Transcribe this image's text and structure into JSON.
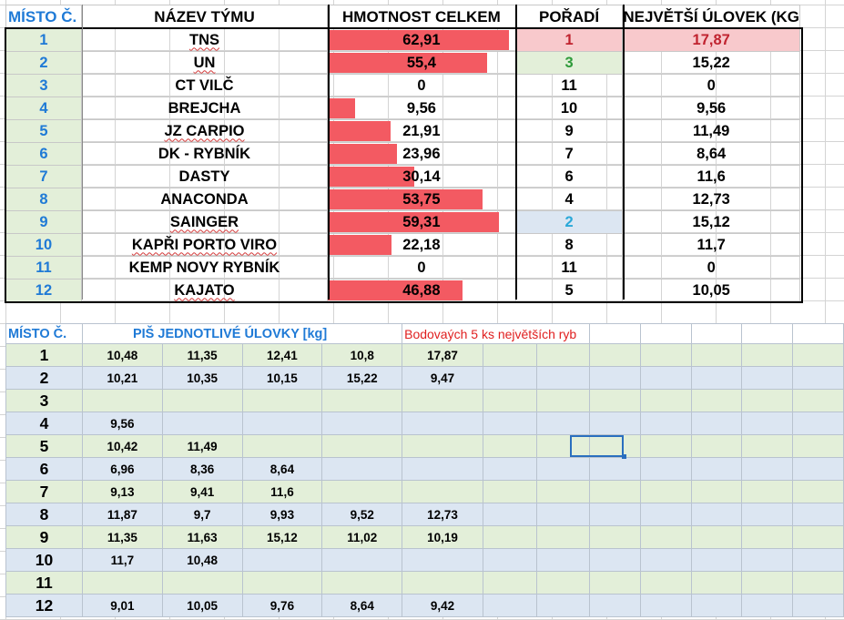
{
  "top_table": {
    "headers": {
      "misto": "MÍSTO Č.",
      "nazev": "NÁZEV TÝMU",
      "hmotnost": "HMOTNOST CELKEM",
      "poradi": "POŘADÍ",
      "ulovek": "NEJVĚTŠÍ ÚLOVEK (KG"
    },
    "bar_max": 65,
    "rows": [
      {
        "misto": "1",
        "nazev": "TNS",
        "hmotnost": "62,91",
        "hmotnost_value": 62.91,
        "poradi": "1",
        "ulovek": "17,87"
      },
      {
        "misto": "2",
        "nazev": "UN",
        "hmotnost": "55,4",
        "hmotnost_value": 55.4,
        "poradi": "3",
        "ulovek": "15,22"
      },
      {
        "misto": "3",
        "nazev": "CT VILČ",
        "hmotnost": "0",
        "hmotnost_value": 0,
        "poradi": "11",
        "ulovek": "0"
      },
      {
        "misto": "4",
        "nazev": "BREJCHA",
        "hmotnost": "9,56",
        "hmotnost_value": 9.56,
        "poradi": "10",
        "ulovek": "9,56"
      },
      {
        "misto": "5",
        "nazev": "JZ CARPIO",
        "hmotnost": "21,91",
        "hmotnost_value": 21.91,
        "poradi": "9",
        "ulovek": "11,49"
      },
      {
        "misto": "6",
        "nazev": "DK - RYBNÍK",
        "hmotnost": "23,96",
        "hmotnost_value": 23.96,
        "poradi": "7",
        "ulovek": "8,64"
      },
      {
        "misto": "7",
        "nazev": "DASTY",
        "hmotnost": "30,14",
        "hmotnost_value": 30.14,
        "poradi": "6",
        "ulovek": "11,6"
      },
      {
        "misto": "8",
        "nazev": "ANACONDA",
        "hmotnost": "53,75",
        "hmotnost_value": 53.75,
        "poradi": "4",
        "ulovek": "12,73"
      },
      {
        "misto": "9",
        "nazev": "SAINGER",
        "hmotnost": "59,31",
        "hmotnost_value": 59.31,
        "poradi": "2",
        "ulovek": "15,12"
      },
      {
        "misto": "10",
        "nazev": "KAPŘI PORTO VIRO",
        "hmotnost": "22,18",
        "hmotnost_value": 22.18,
        "poradi": "8",
        "ulovek": "11,7"
      },
      {
        "misto": "11",
        "nazev": "KEMP NOVY RYBNÍK",
        "hmotnost": "0",
        "hmotnost_value": 0,
        "poradi": "11",
        "ulovek": "0"
      },
      {
        "misto": "12",
        "nazev": "KAJATO",
        "hmotnost": "46,88",
        "hmotnost_value": 46.88,
        "poradi": "5",
        "ulovek": "10,05"
      }
    ],
    "highlight_colors": {
      "rank1_bg": "#f8c9cc",
      "rank1_text": "#c0232f",
      "rank2_bg": "#dce6f2",
      "rank2_text": "#2aa8d8",
      "rank3_bg": "#e3efd9",
      "rank3_text": "#2e9a3a",
      "bar": "#f35a62",
      "header_text": "#1f7ad6"
    }
  },
  "bottom_table": {
    "headers": {
      "misto": "MÍSTO Č.",
      "ulovky": "PIŠ JEDNOTLIVÉ ÚLOVKY [kg]",
      "note": "Bodovaých 5 ks největších ryb"
    },
    "rows": [
      {
        "misto": "1",
        "values": [
          "10,48",
          "11,35",
          "12,41",
          "10,8",
          "17,87"
        ]
      },
      {
        "misto": "2",
        "values": [
          "10,21",
          "10,35",
          "10,15",
          "15,22",
          "9,47"
        ]
      },
      {
        "misto": "3",
        "values": []
      },
      {
        "misto": "4",
        "values": [
          "9,56"
        ]
      },
      {
        "misto": "5",
        "values": [
          "10,42",
          "11,49"
        ]
      },
      {
        "misto": "6",
        "values": [
          "6,96",
          "8,36",
          "8,64"
        ]
      },
      {
        "misto": "7",
        "values": [
          "9,13",
          "9,41",
          "11,6"
        ]
      },
      {
        "misto": "8",
        "values": [
          "11,87",
          "9,7",
          "9,93",
          "9,52",
          "12,73"
        ]
      },
      {
        "misto": "9",
        "values": [
          "11,35",
          "11,63",
          "15,12",
          "11,02",
          "10,19"
        ]
      },
      {
        "misto": "10",
        "values": [
          "11,7",
          "10,48"
        ]
      },
      {
        "misto": "11",
        "values": []
      },
      {
        "misto": "12",
        "values": [
          "9,01",
          "10,05",
          "9,76",
          "8,64",
          "9,42"
        ]
      }
    ]
  }
}
